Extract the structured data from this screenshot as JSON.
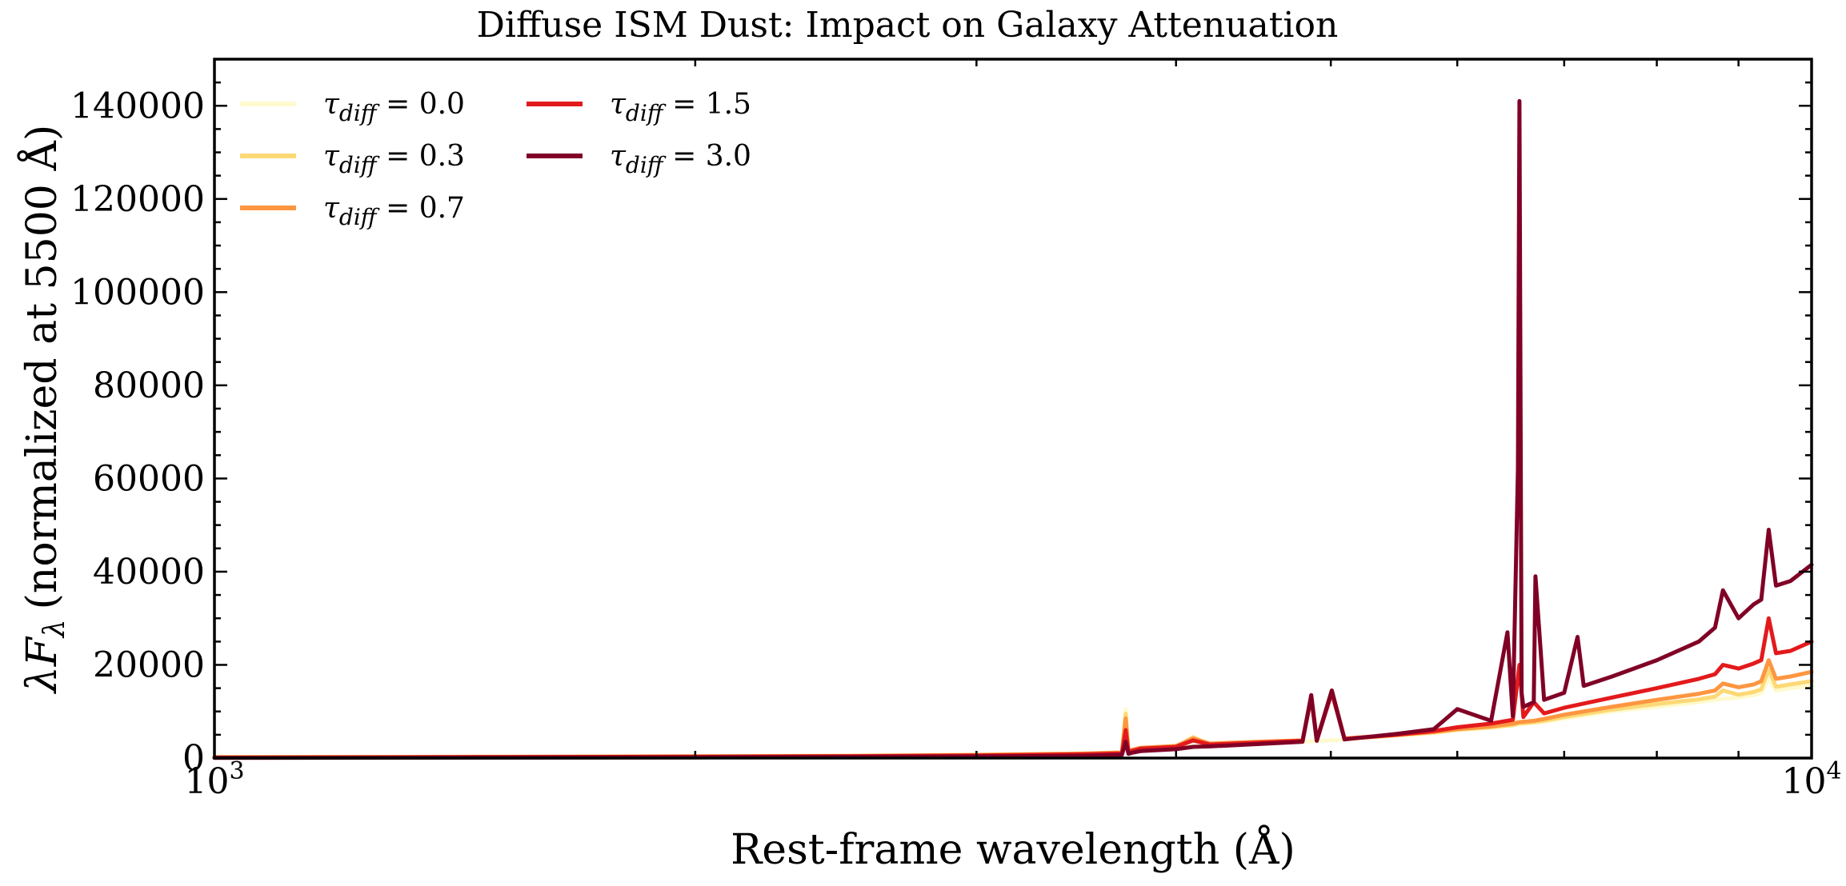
{
  "chart_data": {
    "type": "line",
    "title": "Diffuse ISM Dust: Impact on Galaxy Attenuation",
    "xlabel": "Rest-frame wavelength (Å)",
    "ylabel_text": "(normalized at 5500 Å)",
    "ylabel_symbol": "λF",
    "ylabel_subscript": "λ",
    "xscale": "log",
    "xlim": [
      1000,
      10000
    ],
    "ylim": [
      0,
      150000
    ],
    "x_ticks": [
      {
        "value": 1000,
        "base": "10",
        "exp": "3"
      },
      {
        "value": 10000,
        "base": "10",
        "exp": "4"
      }
    ],
    "y_ticks": [
      0,
      20000,
      40000,
      60000,
      80000,
      100000,
      120000,
      140000
    ],
    "y_tick_labels": [
      "0",
      "20000",
      "40000",
      "60000",
      "80000",
      "100000",
      "120000",
      "140000"
    ],
    "grid": false,
    "legend_position": "top-left",
    "series": [
      {
        "name": "τdiff = 0.0",
        "tau": "0.0",
        "color": "#fffacd",
        "x": [
          1000,
          1500,
          2000,
          2500,
          3000,
          3500,
          3700,
          3720,
          3735,
          3750,
          3800,
          4000,
          4100,
          4200,
          4500,
          4800,
          4861,
          4900,
          5007,
          5100,
          5500,
          5800,
          6000,
          6300,
          6500,
          6563,
          6600,
          6700,
          6800,
          7000,
          7500,
          8000,
          8500,
          8700,
          8800,
          9000,
          9200,
          9300,
          9400,
          9500,
          9700,
          10000
        ],
        "y": [
          200,
          300,
          400,
          500,
          700,
          1000,
          1200,
          10500,
          1200,
          1500,
          2000,
          2300,
          2600,
          2800,
          3200,
          3500,
          3600,
          3700,
          3800,
          4000,
          4800,
          5400,
          6000,
          6500,
          7000,
          7300,
          7300,
          7500,
          7800,
          8500,
          10000,
          11000,
          12000,
          12500,
          12700,
          13000,
          13500,
          14000,
          17000,
          14500,
          15000,
          15500
        ]
      },
      {
        "name": "τdiff = 0.3",
        "tau": "0.3",
        "color": "#fdd976",
        "x": [
          1000,
          1500,
          2000,
          2500,
          3000,
          3500,
          3700,
          3720,
          3735,
          3750,
          3800,
          4000,
          4100,
          4200,
          4500,
          4800,
          4861,
          4900,
          5007,
          5100,
          5500,
          5800,
          6000,
          6300,
          6500,
          6563,
          6600,
          6700,
          6800,
          7000,
          7500,
          8000,
          8500,
          8700,
          8800,
          9000,
          9200,
          9300,
          9400,
          9500,
          9700,
          10000
        ],
        "y": [
          200,
          300,
          400,
          500,
          700,
          1000,
          1200,
          9500,
          1300,
          1600,
          2100,
          2400,
          4500,
          2900,
          3300,
          3600,
          13000,
          3800,
          14500,
          4100,
          4900,
          5500,
          6100,
          6600,
          7100,
          7500,
          7500,
          7700,
          8000,
          8800,
          10400,
          11600,
          12600,
          13200,
          14500,
          13600,
          14200,
          14800,
          19000,
          15300,
          15800,
          16500
        ]
      },
      {
        "name": "τdiff = 0.7",
        "tau": "0.7",
        "color": "#fd9641",
        "x": [
          1000,
          1500,
          2000,
          2500,
          3000,
          3500,
          3700,
          3720,
          3735,
          3750,
          3800,
          4000,
          4100,
          4200,
          4500,
          4800,
          4861,
          4900,
          5007,
          5100,
          5500,
          5800,
          6000,
          6300,
          6500,
          6563,
          6600,
          6700,
          6800,
          7000,
          7500,
          8000,
          8500,
          8700,
          8800,
          9000,
          9200,
          9300,
          9400,
          9500,
          9700,
          10000
        ],
        "y": [
          150,
          250,
          350,
          450,
          650,
          950,
          1200,
          8500,
          1400,
          1700,
          2200,
          2600,
          4200,
          3100,
          3500,
          3800,
          13500,
          3900,
          14500,
          4200,
          5000,
          5600,
          6200,
          6800,
          7400,
          7700,
          7800,
          8000,
          8400,
          9300,
          11000,
          12500,
          13800,
          14500,
          16000,
          15200,
          15800,
          16500,
          21000,
          17000,
          17500,
          18500
        ]
      },
      {
        "name": "τdiff = 1.5",
        "tau": "1.5",
        "color": "#e31a1c",
        "x": [
          1000,
          1500,
          2000,
          2500,
          3000,
          3500,
          3700,
          3720,
          3735,
          3750,
          3800,
          4000,
          4100,
          4200,
          4500,
          4800,
          4861,
          4900,
          5007,
          5100,
          5500,
          5800,
          6000,
          6300,
          6500,
          6563,
          6600,
          6700,
          6800,
          7000,
          7500,
          8000,
          8500,
          8700,
          8800,
          9000,
          9200,
          9300,
          9400,
          9500,
          9700,
          10000
        ],
        "y": [
          100,
          200,
          300,
          400,
          550,
          800,
          1000,
          6000,
          1200,
          1500,
          2000,
          2400,
          3800,
          2900,
          3300,
          3700,
          13000,
          3800,
          14000,
          4100,
          5000,
          5800,
          6600,
          7400,
          8200,
          20000,
          8800,
          12000,
          9600,
          10800,
          13000,
          15000,
          17000,
          18000,
          20000,
          19200,
          20300,
          21000,
          30000,
          22500,
          23000,
          25000
        ]
      },
      {
        "name": "τdiff = 3.0",
        "tau": "3.0",
        "color": "#800026",
        "x": [
          1000,
          1500,
          2000,
          2500,
          3000,
          3500,
          3700,
          3720,
          3735,
          3750,
          3800,
          4000,
          4100,
          4200,
          4500,
          4800,
          4861,
          4900,
          5007,
          5100,
          5500,
          5800,
          6000,
          6300,
          6450,
          6500,
          6548,
          6563,
          6583,
          6600,
          6700,
          6716,
          6800,
          7000,
          7136,
          7200,
          7500,
          8000,
          8500,
          8700,
          8800,
          9000,
          9200,
          9300,
          9400,
          9500,
          9700,
          10000
        ],
        "y": [
          50,
          100,
          150,
          250,
          350,
          500,
          700,
          3500,
          900,
          1100,
          1500,
          1900,
          2400,
          2500,
          3000,
          3500,
          13500,
          3700,
          14500,
          4000,
          5200,
          6200,
          10500,
          8000,
          27000,
          9000,
          62000,
          141000,
          14000,
          11000,
          12000,
          39000,
          12500,
          14000,
          26000,
          15500,
          17500,
          21000,
          25000,
          28000,
          36000,
          30000,
          33000,
          34000,
          49000,
          37000,
          38000,
          41500
        ]
      }
    ]
  }
}
